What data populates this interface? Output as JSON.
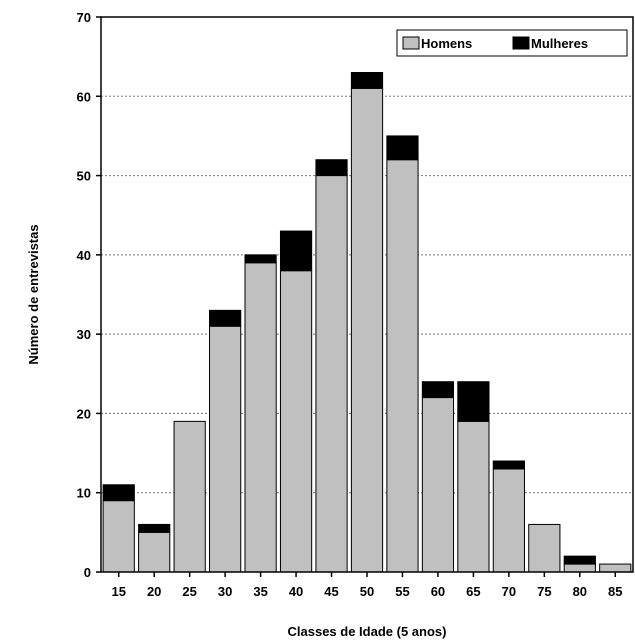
{
  "chart_data": {
    "type": "bar",
    "stacked": true,
    "xlabel": "Classes de Idade (5 anos)",
    "ylabel": "Número de entrevistas",
    "ylim": [
      0,
      70
    ],
    "yticks": [
      0,
      10,
      20,
      30,
      40,
      50,
      60,
      70
    ],
    "grid": "horizontal dotted",
    "legend_position": "top-right",
    "categories": [
      "15",
      "20",
      "25",
      "30",
      "35",
      "40",
      "45",
      "50",
      "55",
      "60",
      "65",
      "70",
      "75",
      "80",
      "85"
    ],
    "series": [
      {
        "name": "Homens",
        "color": "#c0c0c0",
        "values": [
          9,
          5,
          19,
          31,
          39,
          38,
          50,
          61,
          52,
          22,
          19,
          13,
          6,
          1,
          1
        ]
      },
      {
        "name": "Mulheres",
        "color": "#000000",
        "values": [
          2,
          1,
          0,
          2,
          1,
          5,
          2,
          2,
          3,
          2,
          5,
          1,
          0,
          1,
          0
        ]
      }
    ]
  }
}
